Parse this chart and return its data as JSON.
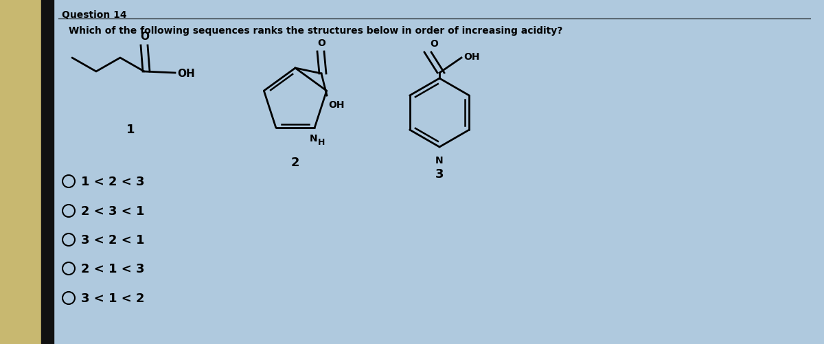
{
  "title": "Question 14",
  "question": "Which of the following sequences ranks the structures below in order of increasing acidity?",
  "options": [
    "O 1 < 2 < 3",
    "O 2 < 3 < 1",
    "O 3 < 2 < 1",
    "O 2 < 1 < 3",
    "O 3 < 1 < 2"
  ],
  "bg_color": "#afc9de",
  "left_strip_color": "#2a2a2a",
  "title_fontsize": 10,
  "question_fontsize": 10,
  "option_fontsize": 13,
  "label_fontsize": 13,
  "struct_lw": 2.0
}
